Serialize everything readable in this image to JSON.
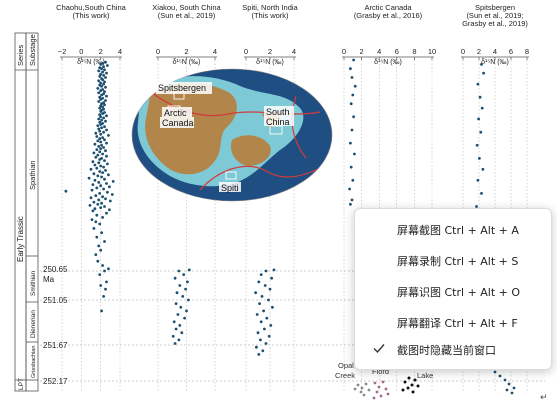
{
  "chart_data": {
    "type": "scatter",
    "xlabel": "δ¹⁵N (‰)",
    "panels": [
      {
        "title": [
          "Chaohu,South China",
          "(This work)"
        ],
        "ticks": [
          "−2",
          "0",
          "2",
          "4"
        ],
        "xlim": [
          -2,
          4
        ],
        "points": [
          {
            "x": 2.1,
            "y": 251.2
          },
          {
            "x": 2.3,
            "y": 251.0
          },
          {
            "x": 2.5,
            "y": 250.9
          },
          {
            "x": 2.0,
            "y": 250.85
          },
          {
            "x": 2.6,
            "y": 250.8
          },
          {
            "x": 1.9,
            "y": 250.7
          },
          {
            "x": 2.4,
            "y": 250.65
          },
          {
            "x": 2.8,
            "y": 250.55
          },
          {
            "x": 2.2,
            "y": 250.4
          },
          {
            "x": 1.7,
            "y": 250.2
          },
          {
            "x": 1.5,
            "y": 249.9
          },
          {
            "x": 2.0,
            "y": 249.7
          },
          {
            "x": 1.8,
            "y": 249.5
          },
          {
            "x": 2.4,
            "y": 249.3
          },
          {
            "x": 1.6,
            "y": 249.1
          },
          {
            "x": 2.1,
            "y": 248.9
          },
          {
            "x": 1.3,
            "y": 248.7
          },
          {
            "x": 1.9,
            "y": 248.5
          },
          {
            "x": 1.5,
            "y": 248.4
          },
          {
            "x": 1.1,
            "y": 248.3
          },
          {
            "x": 2.2,
            "y": 248.2
          },
          {
            "x": 1.6,
            "y": 248.1
          },
          {
            "x": 2.6,
            "y": 248.0
          },
          {
            "x": 1.2,
            "y": 247.9
          },
          {
            "x": 2.9,
            "y": 247.85
          },
          {
            "x": 1.4,
            "y": 247.8
          },
          {
            "x": 2.0,
            "y": 247.75
          },
          {
            "x": 2.4,
            "y": 247.7
          },
          {
            "x": 0.9,
            "y": 247.65
          },
          {
            "x": 1.7,
            "y": 247.6
          },
          {
            "x": 2.1,
            "y": 247.55
          },
          {
            "x": 1.3,
            "y": 247.5
          },
          {
            "x": 3.0,
            "y": 247.45
          },
          {
            "x": 1.8,
            "y": 247.4
          },
          {
            "x": 2.5,
            "y": 247.35
          },
          {
            "x": 1.0,
            "y": 247.3
          },
          {
            "x": 2.2,
            "y": 247.25
          },
          {
            "x": 1.5,
            "y": 247.2
          },
          {
            "x": 3.2,
            "y": 247.15
          },
          {
            "x": 1.9,
            "y": 247.1
          },
          {
            "x": 2.7,
            "y": 247.05
          },
          {
            "x": -1.6,
            "y": 247.0
          },
          {
            "x": 1.1,
            "y": 246.95
          },
          {
            "x": 2.3,
            "y": 246.9
          },
          {
            "x": 1.6,
            "y": 246.85
          },
          {
            "x": 2.9,
            "y": 246.8
          },
          {
            "x": 2.0,
            "y": 246.75
          },
          {
            "x": 1.2,
            "y": 246.7
          },
          {
            "x": 2.6,
            "y": 246.65
          },
          {
            "x": 1.8,
            "y": 246.6
          },
          {
            "x": 3.3,
            "y": 246.55
          },
          {
            "x": 1.4,
            "y": 246.5
          },
          {
            "x": 2.4,
            "y": 246.45
          },
          {
            "x": 0.8,
            "y": 246.4
          },
          {
            "x": 2.1,
            "y": 246.35
          },
          {
            "x": 1.7,
            "y": 246.3
          },
          {
            "x": 2.8,
            "y": 246.25
          },
          {
            "x": 1.3,
            "y": 246.2
          },
          {
            "x": 2.2,
            "y": 246.15
          },
          {
            "x": 1.9,
            "y": 246.1
          },
          {
            "x": 2.5,
            "y": 246.05
          },
          {
            "x": 1.0,
            "y": 246.0
          },
          {
            "x": 1.6,
            "y": 245.95
          },
          {
            "x": 2.3,
            "y": 245.9
          },
          {
            "x": 2.0,
            "y": 245.85
          },
          {
            "x": 1.4,
            "y": 245.8
          },
          {
            "x": 2.7,
            "y": 245.75
          },
          {
            "x": 1.8,
            "y": 245.7
          },
          {
            "x": 1.2,
            "y": 245.65
          },
          {
            "x": 2.4,
            "y": 245.6
          },
          {
            "x": 1.9,
            "y": 245.55
          },
          {
            "x": 2.1,
            "y": 245.5
          },
          {
            "x": 1.5,
            "y": 245.45
          },
          {
            "x": 2.6,
            "y": 245.4
          },
          {
            "x": 1.7,
            "y": 245.35
          },
          {
            "x": 2.2,
            "y": 245.3
          },
          {
            "x": 1.3,
            "y": 245.25
          },
          {
            "x": 1.9,
            "y": 245.2
          },
          {
            "x": 2.5,
            "y": 245.15
          },
          {
            "x": 1.6,
            "y": 245.1
          },
          {
            "x": 2.0,
            "y": 245.05
          },
          {
            "x": 2.3,
            "y": 245.0
          },
          {
            "x": 1.8,
            "y": 244.95
          },
          {
            "x": 2.1,
            "y": 244.9
          },
          {
            "x": 1.4,
            "y": 244.85
          },
          {
            "x": 2.6,
            "y": 244.8
          },
          {
            "x": 2.0,
            "y": 244.75
          },
          {
            "x": 1.7,
            "y": 244.7
          },
          {
            "x": 2.4,
            "y": 244.65
          },
          {
            "x": 1.9,
            "y": 244.6
          },
          {
            "x": 2.2,
            "y": 244.55
          },
          {
            "x": 1.6,
            "y": 244.5
          },
          {
            "x": 2.8,
            "y": 244.45
          },
          {
            "x": 2.0,
            "y": 244.4
          },
          {
            "x": 1.5,
            "y": 244.35
          },
          {
            "x": 2.3,
            "y": 244.3
          },
          {
            "x": 1.9,
            "y": 244.25
          },
          {
            "x": 2.6,
            "y": 244.2
          },
          {
            "x": 1.8,
            "y": 244.15
          },
          {
            "x": 2.1,
            "y": 244.1
          },
          {
            "x": 2.4,
            "y": 244.05
          },
          {
            "x": 1.7,
            "y": 244.0
          },
          {
            "x": 2.0,
            "y": 243.95
          },
          {
            "x": 2.2,
            "y": 243.9
          },
          {
            "x": 1.9,
            "y": 243.85
          },
          {
            "x": 2.5,
            "y": 243.8
          },
          {
            "x": 2.1,
            "y": 243.75
          },
          {
            "x": 1.8,
            "y": 243.7
          },
          {
            "x": 2.3,
            "y": 243.65
          },
          {
            "x": 2.0,
            "y": 243.6
          },
          {
            "x": 2.6,
            "y": 243.55
          },
          {
            "x": 1.9,
            "y": 243.5
          },
          {
            "x": 2.2,
            "y": 243.45
          },
          {
            "x": 2.4,
            "y": 243.4
          },
          {
            "x": 2.0,
            "y": 243.35
          },
          {
            "x": 2.1,
            "y": 243.3
          },
          {
            "x": 2.3,
            "y": 243.25
          },
          {
            "x": 1.9,
            "y": 243.2
          },
          {
            "x": 2.2,
            "y": 243.15
          },
          {
            "x": 2.0,
            "y": 243.1
          },
          {
            "x": 2.4,
            "y": 243.05
          },
          {
            "x": 2.1,
            "y": 243.0
          },
          {
            "x": 2.3,
            "y": 242.95
          },
          {
            "x": 1.8,
            "y": 242.9
          },
          {
            "x": 2.5,
            "y": 242.85
          },
          {
            "x": 2.0,
            "y": 242.8
          },
          {
            "x": 2.2,
            "y": 242.75
          },
          {
            "x": 1.9,
            "y": 242.7
          },
          {
            "x": 2.6,
            "y": 242.65
          },
          {
            "x": 2.1,
            "y": 242.6
          },
          {
            "x": 2.3,
            "y": 242.55
          },
          {
            "x": 1.8,
            "y": 242.5
          },
          {
            "x": 2.4,
            "y": 242.45
          },
          {
            "x": 2.0,
            "y": 242.4
          },
          {
            "x": 2.2,
            "y": 242.35
          },
          {
            "x": 1.7,
            "y": 242.3
          },
          {
            "x": 2.5,
            "y": 242.25
          },
          {
            "x": 2.1,
            "y": 242.2
          },
          {
            "x": 1.9,
            "y": 242.15
          },
          {
            "x": 2.3,
            "y": 242.1
          },
          {
            "x": 2.0,
            "y": 242.05
          },
          {
            "x": 2.4,
            "y": 242.0
          },
          {
            "x": 1.8,
            "y": 241.95
          },
          {
            "x": 2.2,
            "y": 241.9
          },
          {
            "x": 2.1,
            "y": 241.85
          },
          {
            "x": 2.5,
            "y": 241.8
          },
          {
            "x": 1.9,
            "y": 241.75
          },
          {
            "x": 2.3,
            "y": 241.7
          },
          {
            "x": 2.0,
            "y": 241.65
          },
          {
            "x": 2.6,
            "y": 241.6
          },
          {
            "x": 2.2,
            "y": 241.55
          },
          {
            "x": 1.8,
            "y": 241.5
          },
          {
            "x": 2.4,
            "y": 241.45
          },
          {
            "x": 2.1,
            "y": 241.4
          },
          {
            "x": 1.9,
            "y": 241.35
          },
          {
            "x": 2.3,
            "y": 241.3
          },
          {
            "x": 2.7,
            "y": 241.25
          },
          {
            "x": 2.0,
            "y": 241.2
          },
          {
            "x": 2.2,
            "y": 241.15
          },
          {
            "x": 2.5,
            "y": 241.1
          }
        ]
      },
      {
        "title": [
          "Xiakou, South China",
          "(Sun  et al., 2019)"
        ],
        "ticks": [
          "0",
          "2",
          "4"
        ],
        "xlim": [
          -1,
          5
        ],
        "points": [
          {
            "x": 0.8,
            "y": 251.65
          },
          {
            "x": 1.2,
            "y": 251.6
          },
          {
            "x": 0.6,
            "y": 251.55
          },
          {
            "x": 1.5,
            "y": 251.5
          },
          {
            "x": 0.9,
            "y": 251.45
          },
          {
            "x": 1.3,
            "y": 251.4
          },
          {
            "x": 0.7,
            "y": 251.35
          },
          {
            "x": 1.8,
            "y": 251.3
          },
          {
            "x": 1.1,
            "y": 251.25
          },
          {
            "x": 2.0,
            "y": 251.2
          },
          {
            "x": 1.4,
            "y": 251.15
          },
          {
            "x": 0.9,
            "y": 251.1
          },
          {
            "x": 2.2,
            "y": 251.05
          },
          {
            "x": 1.6,
            "y": 251.0
          },
          {
            "x": 1.0,
            "y": 250.95
          },
          {
            "x": 1.9,
            "y": 250.9
          },
          {
            "x": 1.3,
            "y": 250.85
          },
          {
            "x": 2.1,
            "y": 250.8
          },
          {
            "x": 0.8,
            "y": 250.75
          },
          {
            "x": 1.7,
            "y": 250.7
          },
          {
            "x": 1.2,
            "y": 250.65
          },
          {
            "x": 2.3,
            "y": 250.6
          }
        ]
      },
      {
        "title": [
          "Spiti, North India",
          "(This work)"
        ],
        "ticks": [
          "0",
          "2",
          "4"
        ],
        "xlim": [
          -0.5,
          5.5
        ],
        "points": [
          {
            "x": 1.1,
            "y": 251.8
          },
          {
            "x": 1.6,
            "y": 251.75
          },
          {
            "x": 0.8,
            "y": 251.7
          },
          {
            "x": 2.0,
            "y": 251.65
          },
          {
            "x": 1.3,
            "y": 251.6
          },
          {
            "x": 2.4,
            "y": 251.55
          },
          {
            "x": 1.0,
            "y": 251.5
          },
          {
            "x": 1.8,
            "y": 251.45
          },
          {
            "x": 2.6,
            "y": 251.4
          },
          {
            "x": 1.4,
            "y": 251.35
          },
          {
            "x": 2.1,
            "y": 251.3
          },
          {
            "x": 0.9,
            "y": 251.25
          },
          {
            "x": 1.7,
            "y": 251.2
          },
          {
            "x": 2.8,
            "y": 251.15
          },
          {
            "x": 1.2,
            "y": 251.1
          },
          {
            "x": 2.3,
            "y": 251.05
          },
          {
            "x": 1.5,
            "y": 251.0
          },
          {
            "x": 0.7,
            "y": 250.95
          },
          {
            "x": 2.5,
            "y": 250.9
          },
          {
            "x": 1.9,
            "y": 250.85
          },
          {
            "x": 1.1,
            "y": 250.8
          },
          {
            "x": 2.7,
            "y": 250.75
          },
          {
            "x": 1.4,
            "y": 250.7
          },
          {
            "x": 2.0,
            "y": 250.65
          },
          {
            "x": 3.0,
            "y": 250.6
          }
        ]
      },
      {
        "title": [
          "Arctic Canada",
          "(Grasby et al., 2016)"
        ],
        "ticks": [
          "0",
          "2",
          "4",
          "6",
          "8",
          "10"
        ],
        "xlim": [
          -0.5,
          10.5
        ],
        "points": [
          {
            "x": 0.3,
            "y": 247.6
          },
          {
            "x": 0.5,
            "y": 247.4
          },
          {
            "x": 0.2,
            "y": 246.9
          },
          {
            "x": 0.6,
            "y": 246.5
          },
          {
            "x": 0.4,
            "y": 245.9
          },
          {
            "x": 0.8,
            "y": 245.3
          },
          {
            "x": 0.3,
            "y": 244.8
          },
          {
            "x": 0.5,
            "y": 244.2
          },
          {
            "x": 0.7,
            "y": 243.6
          },
          {
            "x": 0.4,
            "y": 243.0
          },
          {
            "x": 0.6,
            "y": 242.6
          },
          {
            "x": 0.9,
            "y": 242.2
          },
          {
            "x": 0.5,
            "y": 241.8
          },
          {
            "x": 0.3,
            "y": 241.4
          },
          {
            "x": 0.7,
            "y": 241.0
          }
        ]
      },
      {
        "title": [
          "Spitsbergen",
          "(Sun et al., 2019;",
          "Grasby et al., 2019)"
        ],
        "ticks": [
          "0",
          "2",
          "4",
          "6",
          "8"
        ],
        "xlim": [
          -0.5,
          8.5
        ],
        "points": [
          {
            "x": 1.3,
            "y": 250.2
          },
          {
            "x": 1.7,
            "y": 249.6
          },
          {
            "x": 1.1,
            "y": 249.0
          },
          {
            "x": 1.9,
            "y": 248.3
          },
          {
            "x": 1.4,
            "y": 247.7
          },
          {
            "x": 2.1,
            "y": 247.1
          },
          {
            "x": 1.6,
            "y": 246.5
          },
          {
            "x": 2.3,
            "y": 246.0
          },
          {
            "x": 1.8,
            "y": 245.5
          },
          {
            "x": 1.5,
            "y": 244.9
          },
          {
            "x": 2.0,
            "y": 244.3
          },
          {
            "x": 1.7,
            "y": 243.7
          },
          {
            "x": 2.2,
            "y": 243.2
          },
          {
            "x": 1.9,
            "y": 242.7
          },
          {
            "x": 1.6,
            "y": 242.1
          },
          {
            "x": 2.4,
            "y": 241.6
          },
          {
            "x": 2.1,
            "y": 241.2
          }
        ]
      }
    ],
    "ages": [
      {
        "value": "250.65",
        "unit": "Ma"
      },
      {
        "value": "251.05",
        "unit": ""
      },
      {
        "value": "251.67",
        "unit": ""
      },
      {
        "value": "252.17",
        "unit": ""
      }
    ],
    "strat": {
      "header_series": "Series",
      "header_substage": "Substage",
      "series": [
        "LPT",
        "Early Trassic"
      ],
      "substages": [
        "Griesbachian",
        "Dienerian",
        "Smithian",
        "Spathian"
      ]
    },
    "lower_labels": [
      "Opal",
      "Creek",
      "Fiord",
      "Lake"
    ],
    "map": {
      "labels": [
        "Spitsbergen",
        "Arctic",
        "Canada",
        "South",
        "China",
        "Spiti"
      ],
      "colors": {
        "ocean": "#1f4e83",
        "shelf": "#7ec9d6",
        "land": "#b2864a",
        "plate_boundary": "#d23b3b"
      }
    },
    "colors": {
      "points": "#1d4f6e",
      "axis": "#555555",
      "grid": "#aaaaaa"
    }
  },
  "context_menu": {
    "items": [
      {
        "name": "screen-capture",
        "label": "屏幕截图 Ctrl + Alt + A"
      },
      {
        "name": "screen-record",
        "label": "屏幕录制 Ctrl + Alt + S"
      },
      {
        "name": "screen-ocr",
        "label": "屏幕识图 Ctrl + Alt + O"
      },
      {
        "name": "screen-translate",
        "label": "屏幕翻译 Ctrl + Alt + F"
      },
      {
        "name": "hide-window",
        "label": "截图时隐藏当前窗口",
        "checked": true
      }
    ]
  }
}
